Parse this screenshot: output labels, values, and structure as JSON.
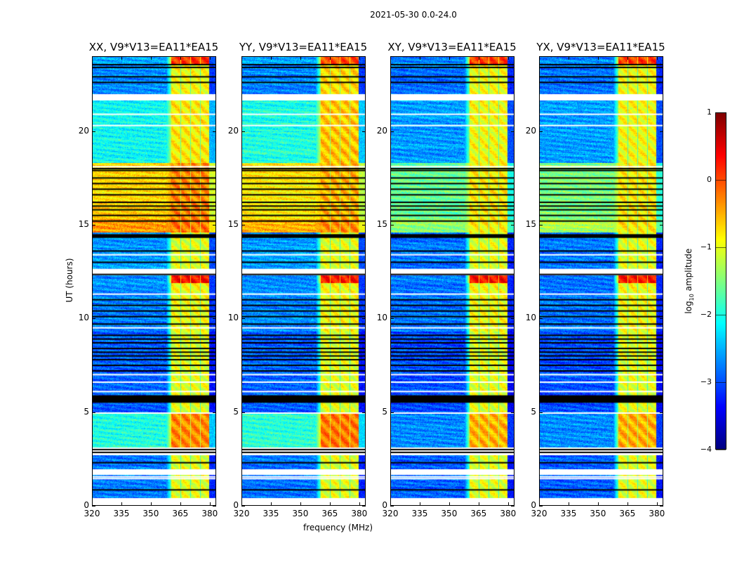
{
  "chart_data": {
    "type": "heatmap",
    "title": "2021-05-30 0.0-24.0",
    "xlabel": "frequency (MHz)",
    "ylabel": "UT (hours)",
    "xlim": [
      320,
      383.3
    ],
    "ylim": [
      0,
      24
    ],
    "xticks": [
      "320",
      "335",
      "350",
      "365",
      "380"
    ],
    "xtick_values": [
      320,
      335,
      350,
      365,
      380
    ],
    "yticks": [
      "0",
      "5",
      "10",
      "15",
      "20"
    ],
    "ytick_values": [
      0,
      5,
      10,
      15,
      20
    ],
    "colorbar": {
      "label": "log10 amplitude",
      "label_main": "log",
      "label_sub": "10",
      "label_rest": " amplitude",
      "colormap": "jet",
      "range": [
        -4,
        1
      ],
      "ticks": [
        "1",
        "0",
        "−1",
        "−2",
        "−3",
        "−4"
      ],
      "tick_values": [
        1,
        0,
        -1,
        -2,
        -3,
        -4
      ]
    },
    "signal_band_columns_mhz": [
      [
        360.3,
        365.0
      ],
      [
        365.5,
        370.0
      ],
      [
        370.5,
        375.0
      ],
      [
        375.5,
        379.7
      ]
    ],
    "segments_hours": [
      [
        0.4,
        1.65
      ],
      [
        1.95,
        2.7
      ],
      [
        3.1,
        4.95
      ],
      [
        5.0,
        7.0
      ],
      [
        7.0,
        9.3
      ],
      [
        9.3,
        11.9
      ],
      [
        11.9,
        12.3
      ],
      [
        12.65,
        14.6
      ],
      [
        14.6,
        15.3
      ],
      [
        15.3,
        18.3
      ],
      [
        18.3,
        21.65
      ],
      [
        21.97,
        23.6
      ],
      [
        23.6,
        24.0
      ]
    ],
    "panels": [
      {
        "title": "XX, V9*V13=EA11*EA15",
        "background_log_amp": [
          -2.8,
          -2.8,
          -2.0,
          -2.9,
          -2.9,
          -2.7,
          -2.7,
          -2.6,
          -0.4,
          -0.7,
          -2.1,
          -2.7,
          -2.6
        ],
        "band_log_amp": [
          -1.0,
          -1.0,
          -0.3,
          -1.0,
          -1.0,
          -0.9,
          0.3,
          -1.0,
          -0.2,
          -0.3,
          -0.8,
          -0.9,
          0.1
        ]
      },
      {
        "title": "YY, V9*V13=EA11*EA15",
        "background_log_amp": [
          -2.8,
          -2.8,
          -1.9,
          -2.9,
          -2.9,
          -2.7,
          -2.7,
          -2.6,
          -0.5,
          -0.8,
          -2.0,
          -2.7,
          -2.6
        ],
        "band_log_amp": [
          -1.0,
          -1.0,
          -0.2,
          -1.0,
          -1.0,
          -0.9,
          0.3,
          -1.0,
          -0.3,
          -0.5,
          -0.6,
          -0.7,
          0.0
        ]
      },
      {
        "title": "XY, V9*V13=EA11*EA15",
        "background_log_amp": [
          -2.9,
          -2.9,
          -2.7,
          -3.0,
          -3.0,
          -2.8,
          -2.8,
          -2.8,
          -1.4,
          -1.6,
          -2.6,
          -2.8,
          -2.7
        ],
        "band_log_amp": [
          -1.0,
          -1.0,
          -0.5,
          -1.0,
          -1.0,
          -0.9,
          0.3,
          -1.0,
          -0.8,
          -0.8,
          -0.9,
          -0.9,
          0.1
        ]
      },
      {
        "title": "YX, V9*V13=EA11*EA15",
        "background_log_amp": [
          -2.9,
          -2.9,
          -2.7,
          -3.0,
          -3.0,
          -2.8,
          -2.8,
          -2.8,
          -1.3,
          -1.5,
          -2.6,
          -2.8,
          -2.7
        ],
        "band_log_amp": [
          -1.0,
          -1.0,
          -0.5,
          -1.0,
          -1.0,
          -0.9,
          0.3,
          -1.0,
          -0.8,
          -0.8,
          -0.9,
          -0.9,
          0.1
        ]
      }
    ],
    "flagged_black_hours": [
      0.85,
      2.3,
      2.85,
      3.0,
      7.2,
      7.5,
      7.8,
      8.0,
      8.2,
      8.4,
      8.7,
      8.9,
      9.1,
      9.7,
      10.1,
      10.4,
      10.7,
      11.0,
      12.35,
      13.0,
      13.6,
      15.2,
      15.5,
      15.8,
      16.0,
      16.2,
      16.6,
      16.9,
      17.2,
      17.5,
      17.9,
      18.0,
      22.6,
      22.9,
      23.4,
      23.55
    ],
    "flagged_black_bands_hours": [
      [
        5.5,
        5.9
      ],
      [
        14.3,
        14.5
      ]
    ],
    "no_data_white_lines_hours": [
      1.45,
      1.55,
      4.95,
      6.1,
      6.6,
      7.0,
      9.5,
      11.3,
      13.4,
      18.1,
      20.3,
      20.9
    ],
    "no_data_white_bands_hours": [
      [
        0,
        0.4
      ],
      [
        1.65,
        1.95
      ],
      [
        2.7,
        3.1
      ],
      [
        12.45,
        12.65
      ],
      [
        21.65,
        21.97
      ]
    ]
  }
}
